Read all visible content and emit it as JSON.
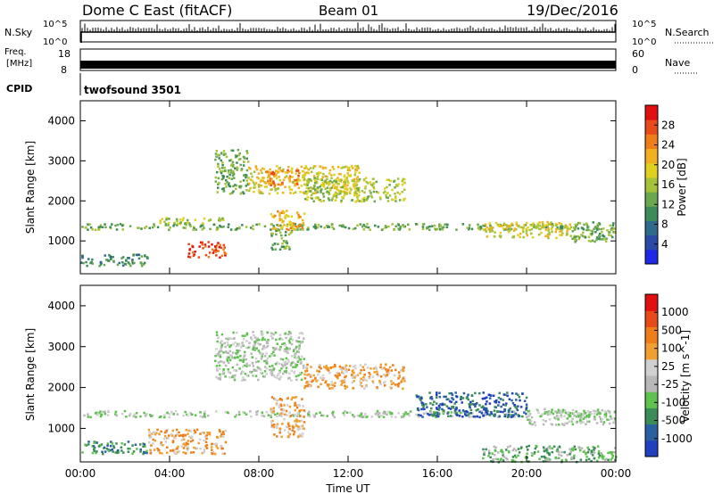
{
  "header": {
    "station": "Dome C East (fitACF)",
    "beam": "Beam 01",
    "date": "19/Dec/2016"
  },
  "aux_panels": {
    "nsky_label": "N.Sky",
    "nsky_top": "10^5",
    "nsky_bottom": "10^0",
    "nsearch_label": "N.Search",
    "nsearch_top": "10^5",
    "nsearch_bottom": "10^0",
    "freq_label_line1": "Freq.",
    "freq_label_line2": "[MHz]",
    "freq_top": "18",
    "freq_bottom": "8",
    "nave_label": "Nave",
    "nave_top": "60",
    "nave_bottom": "0",
    "cpid_label": "CPID",
    "cpid_value": "twofsound 3501"
  },
  "chart_data": [
    {
      "type": "heatmap",
      "title": "Power",
      "xlabel": "Time UT",
      "ylabel": "Slant Range [km]",
      "x_range_hours": [
        0,
        24
      ],
      "ylim": [
        180,
        4500
      ],
      "x_ticks": [
        "00:00",
        "04:00",
        "08:00",
        "12:00",
        "16:00",
        "20:00",
        "00:00"
      ],
      "y_ticks": [
        "1000",
        "2000",
        "3000",
        "4000"
      ],
      "colorbar": {
        "label": "Power [dB]",
        "ticks": [
          "4",
          "8",
          "12",
          "16",
          "20",
          "24",
          "28"
        ],
        "colors": [
          "#1e28e6",
          "#2a4aa8",
          "#2e6b8a",
          "#3c8c5a",
          "#6aa84f",
          "#a6c23a",
          "#e0d020",
          "#f0b020",
          "#ef7d1a",
          "#e84a1a",
          "#e01010"
        ]
      },
      "regions": [
        {
          "t": [
            0.0,
            24.0
          ],
          "r": [
            1300,
            1450
          ],
          "level": 4
        },
        {
          "t": [
            0.0,
            3.0
          ],
          "r": [
            400,
            700
          ],
          "level": 3
        },
        {
          "t": [
            3.5,
            6.5
          ],
          "r": [
            1450,
            1600
          ],
          "level": 5
        },
        {
          "t": [
            4.8,
            6.5
          ],
          "r": [
            600,
            1000
          ],
          "level": 9
        },
        {
          "t": [
            6.0,
            7.5
          ],
          "r": [
            2200,
            3300
          ],
          "level": 4
        },
        {
          "t": [
            7.5,
            12.5
          ],
          "r": [
            2200,
            2900
          ],
          "level": 6
        },
        {
          "t": [
            8.2,
            9.8
          ],
          "r": [
            2400,
            2800
          ],
          "level": 8
        },
        {
          "t": [
            8.5,
            10.0
          ],
          "r": [
            1300,
            1800
          ],
          "level": 7
        },
        {
          "t": [
            10.0,
            14.5
          ],
          "r": [
            2000,
            2600
          ],
          "level": 5
        },
        {
          "t": [
            8.5,
            9.5
          ],
          "r": [
            800,
            1300
          ],
          "level": 4
        },
        {
          "t": [
            18.0,
            22.0
          ],
          "r": [
            1100,
            1500
          ],
          "level": 6
        },
        {
          "t": [
            22.0,
            24.0
          ],
          "r": [
            1000,
            1500
          ],
          "level": 4
        }
      ]
    },
    {
      "type": "heatmap",
      "title": "Velocity",
      "xlabel": "Time UT",
      "ylabel": "Slant Range [km]",
      "x_range_hours": [
        0,
        24
      ],
      "ylim": [
        180,
        4500
      ],
      "x_ticks": [
        "00:00",
        "04:00",
        "08:00",
        "12:00",
        "16:00",
        "20:00",
        "00:00"
      ],
      "y_ticks": [
        "1000",
        "2000",
        "3000",
        "4000"
      ],
      "colorbar": {
        "label": "Velocity [m s^-1]",
        "ticks": [
          "1000",
          "500",
          "100",
          "25",
          "-25",
          "-100",
          "-500",
          "-1000"
        ],
        "colors": [
          "#2040c0",
          "#2a5fa0",
          "#3c8c5a",
          "#5fc24f",
          "#b8b8b8",
          "#d0d0d0",
          "#f0a030",
          "#ef7d1a",
          "#e84a1a",
          "#e01010"
        ]
      },
      "regions": [
        {
          "t": [
            0.0,
            3.0
          ],
          "r": [
            1300,
            1450
          ],
          "level": 4
        },
        {
          "t": [
            3.0,
            24.0
          ],
          "r": [
            1300,
            1450
          ],
          "level": 4
        },
        {
          "t": [
            0.0,
            3.0
          ],
          "r": [
            400,
            700
          ],
          "level": 2
        },
        {
          "t": [
            3.0,
            6.5
          ],
          "r": [
            400,
            1000
          ],
          "level": 6
        },
        {
          "t": [
            6.0,
            10.0
          ],
          "r": [
            2200,
            3400
          ],
          "level": 4
        },
        {
          "t": [
            8.5,
            10.0
          ],
          "r": [
            800,
            1800
          ],
          "level": 6
        },
        {
          "t": [
            10.0,
            14.5
          ],
          "r": [
            2000,
            2600
          ],
          "level": 6
        },
        {
          "t": [
            15.0,
            20.0
          ],
          "r": [
            1300,
            1900
          ],
          "level": 1
        },
        {
          "t": [
            20.0,
            24.0
          ],
          "r": [
            1100,
            1500
          ],
          "level": 4
        },
        {
          "t": [
            18.0,
            24.0
          ],
          "r": [
            200,
            600
          ],
          "level": 3
        }
      ]
    }
  ]
}
